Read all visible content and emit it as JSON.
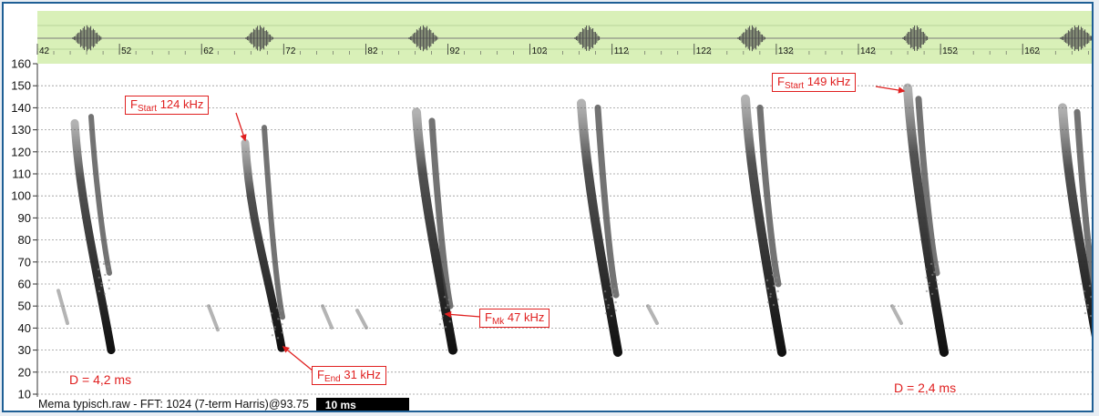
{
  "app": {
    "status_file": "Mema typisch.raw - FFT: 1024 (7-term Harris)@93.75",
    "time_scale": "10 ms"
  },
  "overview": {
    "time_labels": [
      "42",
      "52",
      "62",
      "72",
      "82",
      "92",
      "102",
      "112",
      "122",
      "132",
      "142",
      "152",
      "162"
    ],
    "background": "#d9f0b8"
  },
  "axis": {
    "y_ticks": [
      "160",
      "150",
      "140",
      "130",
      "120",
      "110",
      "100",
      "90",
      "80",
      "70",
      "60",
      "50",
      "40",
      "30",
      "20",
      "10"
    ]
  },
  "annotations": {
    "fstart_left": {
      "main": "F",
      "sub": "Start",
      "value": " 124 kHz"
    },
    "fstart_right": {
      "main": "F",
      "sub": "Start",
      "value": " 149 kHz"
    },
    "fend": {
      "main": "F",
      "sub": "End",
      "value": " 31 kHz"
    },
    "fmk": {
      "main": "F",
      "sub": "Mk",
      "value": " 47 kHz"
    },
    "duration_left": "D = 4,2 ms",
    "duration_right": "D = 2,4 ms"
  },
  "colors": {
    "frame_border": "#1f5f95",
    "annotation": "#e02020",
    "overview_bg": "#d9f0b8"
  }
}
